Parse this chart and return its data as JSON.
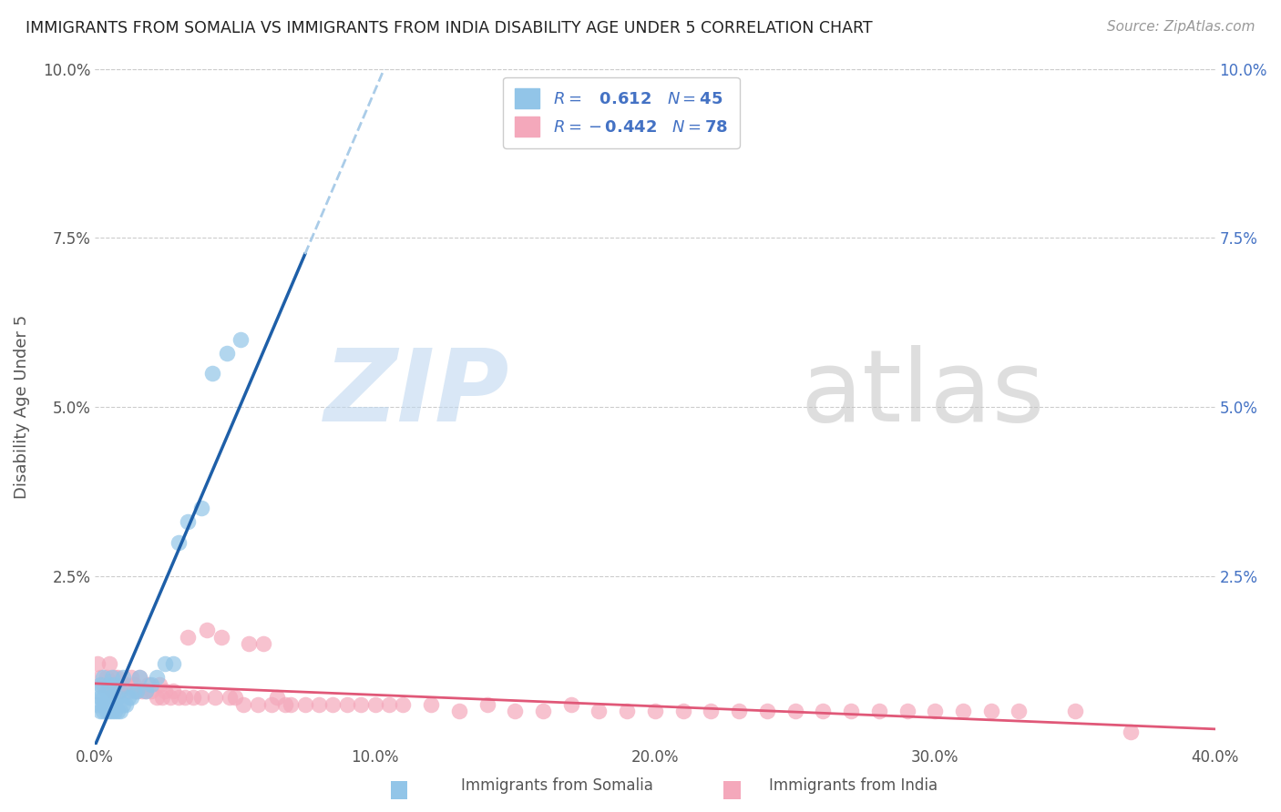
{
  "title": "IMMIGRANTS FROM SOMALIA VS IMMIGRANTS FROM INDIA DISABILITY AGE UNDER 5 CORRELATION CHART",
  "source": "Source: ZipAtlas.com",
  "xlabel_somalia": "Immigrants from Somalia",
  "xlabel_india": "Immigrants from India",
  "ylabel": "Disability Age Under 5",
  "xlim": [
    0.0,
    0.4
  ],
  "ylim": [
    0.0,
    0.1
  ],
  "xticks": [
    0.0,
    0.1,
    0.2,
    0.3,
    0.4
  ],
  "yticks": [
    0.0,
    0.025,
    0.05,
    0.075,
    0.1
  ],
  "ytick_labels_left": [
    "",
    "2.5%",
    "5.0%",
    "7.5%",
    "10.0%"
  ],
  "ytick_labels_right": [
    "",
    "2.5%",
    "5.0%",
    "7.5%",
    "10.0%"
  ],
  "xtick_labels": [
    "0.0%",
    "10.0%",
    "20.0%",
    "30.0%",
    "40.0%"
  ],
  "somalia_color": "#92C5E8",
  "india_color": "#F4A8BB",
  "somalia_line_color": "#1E5FA8",
  "india_line_color": "#E05878",
  "somalia_line_dashed_color": "#AACCE8",
  "watermark_zip_color": "#C8DCF0",
  "watermark_atlas_color": "#C8C8C8",
  "somalia_x": [
    0.001,
    0.001,
    0.002,
    0.002,
    0.002,
    0.003,
    0.003,
    0.003,
    0.003,
    0.004,
    0.004,
    0.004,
    0.005,
    0.005,
    0.005,
    0.005,
    0.006,
    0.006,
    0.006,
    0.006,
    0.007,
    0.007,
    0.007,
    0.008,
    0.008,
    0.009,
    0.009,
    0.01,
    0.01,
    0.011,
    0.012,
    0.013,
    0.014,
    0.015,
    0.016,
    0.018,
    0.02,
    0.022,
    0.025,
    0.028,
    0.03,
    0.033,
    0.038,
    0.042,
    0.047,
    0.052
  ],
  "somalia_y": [
    0.006,
    0.008,
    0.005,
    0.007,
    0.009,
    0.005,
    0.006,
    0.007,
    0.01,
    0.005,
    0.006,
    0.008,
    0.005,
    0.006,
    0.007,
    0.009,
    0.005,
    0.006,
    0.007,
    0.01,
    0.005,
    0.006,
    0.009,
    0.005,
    0.007,
    0.005,
    0.008,
    0.006,
    0.01,
    0.006,
    0.007,
    0.007,
    0.008,
    0.008,
    0.01,
    0.008,
    0.009,
    0.01,
    0.012,
    0.012,
    0.03,
    0.033,
    0.035,
    0.055,
    0.058,
    0.06
  ],
  "india_x": [
    0.001,
    0.002,
    0.003,
    0.004,
    0.005,
    0.005,
    0.006,
    0.007,
    0.008,
    0.008,
    0.009,
    0.01,
    0.011,
    0.012,
    0.013,
    0.014,
    0.015,
    0.016,
    0.017,
    0.018,
    0.019,
    0.02,
    0.022,
    0.023,
    0.024,
    0.025,
    0.027,
    0.028,
    0.03,
    0.032,
    0.033,
    0.035,
    0.038,
    0.04,
    0.043,
    0.045,
    0.048,
    0.05,
    0.053,
    0.055,
    0.058,
    0.06,
    0.063,
    0.065,
    0.068,
    0.07,
    0.075,
    0.08,
    0.085,
    0.09,
    0.095,
    0.1,
    0.105,
    0.11,
    0.12,
    0.13,
    0.14,
    0.15,
    0.16,
    0.17,
    0.18,
    0.19,
    0.2,
    0.21,
    0.22,
    0.23,
    0.24,
    0.25,
    0.26,
    0.27,
    0.28,
    0.29,
    0.3,
    0.31,
    0.32,
    0.33,
    0.35,
    0.37
  ],
  "india_y": [
    0.012,
    0.01,
    0.009,
    0.01,
    0.009,
    0.012,
    0.008,
    0.01,
    0.008,
    0.01,
    0.008,
    0.009,
    0.009,
    0.008,
    0.01,
    0.009,
    0.008,
    0.01,
    0.008,
    0.008,
    0.009,
    0.008,
    0.007,
    0.009,
    0.007,
    0.008,
    0.007,
    0.008,
    0.007,
    0.007,
    0.016,
    0.007,
    0.007,
    0.017,
    0.007,
    0.016,
    0.007,
    0.007,
    0.006,
    0.015,
    0.006,
    0.015,
    0.006,
    0.007,
    0.006,
    0.006,
    0.006,
    0.006,
    0.006,
    0.006,
    0.006,
    0.006,
    0.006,
    0.006,
    0.006,
    0.005,
    0.006,
    0.005,
    0.005,
    0.006,
    0.005,
    0.005,
    0.005,
    0.005,
    0.005,
    0.005,
    0.005,
    0.005,
    0.005,
    0.005,
    0.005,
    0.005,
    0.005,
    0.005,
    0.005,
    0.005,
    0.005,
    0.002
  ],
  "background_color": "#ffffff",
  "grid_color": "#cccccc"
}
